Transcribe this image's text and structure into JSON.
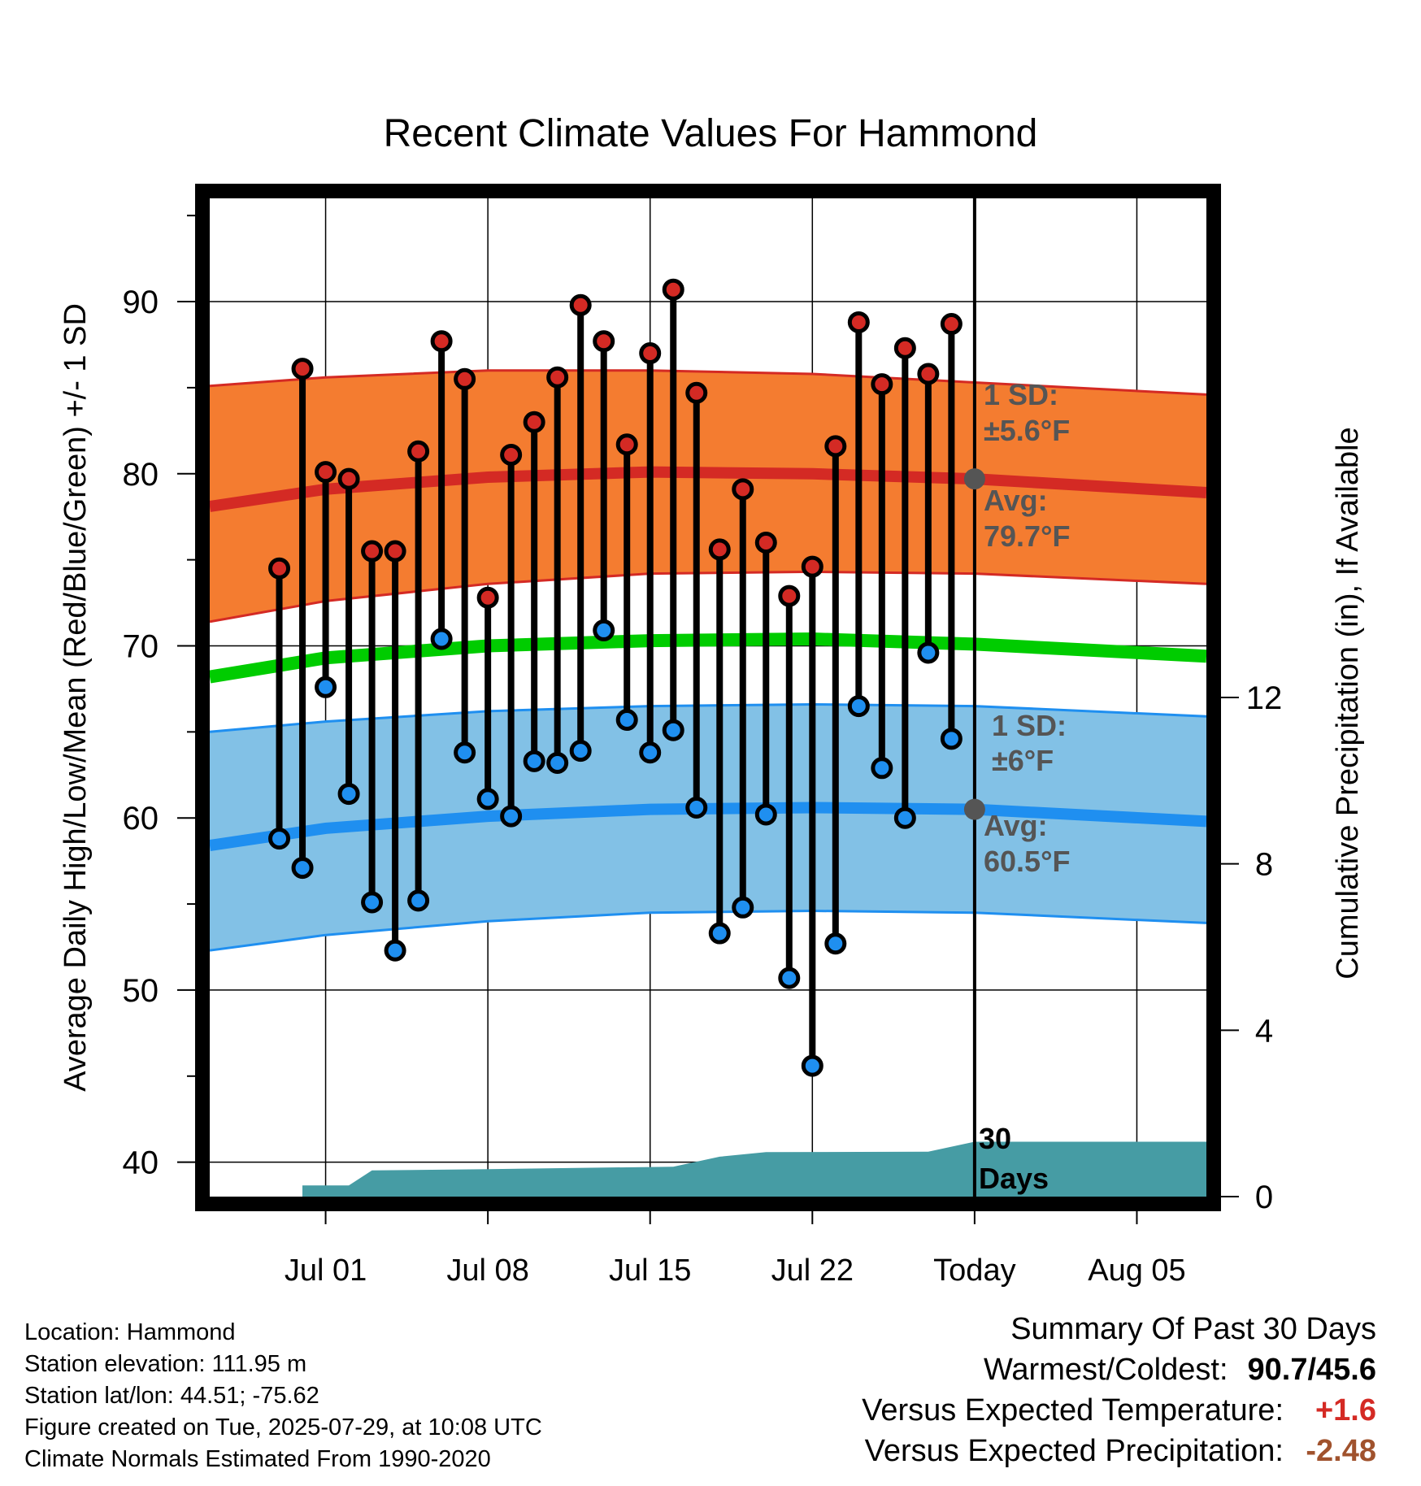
{
  "title": "Recent Climate Values For Hammond",
  "chart_data": {
    "type": "line",
    "title": "Recent Climate Values For Hammond",
    "xlabel": "Day",
    "ylabel": "Average Daily High/Low/Mean (Red/Blue/Green) +/- 1 SD",
    "y2label": "Cumulative Precipitation (in), If Available",
    "ylim": [
      38,
      96
    ],
    "y2lim": [
      0,
      24
    ],
    "yticks": [
      40,
      50,
      60,
      70,
      80,
      90
    ],
    "y2ticks": [
      0,
      4,
      8,
      12
    ],
    "xlim": [
      "2025-06-26",
      "2025-08-08"
    ],
    "xticks": [
      {
        "date": "2025-07-01",
        "label": "Jul 01"
      },
      {
        "date": "2025-07-08",
        "label": "Jul 08"
      },
      {
        "date": "2025-07-15",
        "label": "Jul 15"
      },
      {
        "date": "2025-07-22",
        "label": "Jul 22"
      },
      {
        "date": "2025-07-29",
        "label": "Today"
      },
      {
        "date": "2025-08-05",
        "label": "Aug 05"
      }
    ],
    "grid": true,
    "today": "2025-07-29",
    "daily_dates": [
      "2025-06-29",
      "2025-06-30",
      "2025-07-01",
      "2025-07-02",
      "2025-07-03",
      "2025-07-04",
      "2025-07-05",
      "2025-07-06",
      "2025-07-07",
      "2025-07-08",
      "2025-07-09",
      "2025-07-10",
      "2025-07-11",
      "2025-07-12",
      "2025-07-13",
      "2025-07-14",
      "2025-07-15",
      "2025-07-16",
      "2025-07-17",
      "2025-07-18",
      "2025-07-19",
      "2025-07-20",
      "2025-07-21",
      "2025-07-22",
      "2025-07-23",
      "2025-07-24",
      "2025-07-25",
      "2025-07-26",
      "2025-07-27",
      "2025-07-28"
    ],
    "daily_high": [
      74.5,
      86.1,
      80.1,
      79.7,
      75.5,
      75.5,
      81.3,
      87.7,
      85.5,
      72.8,
      81.1,
      83.0,
      85.6,
      89.8,
      87.7,
      81.7,
      87.0,
      90.7,
      84.7,
      75.6,
      79.1,
      76.0,
      72.9,
      74.6,
      81.6,
      88.8,
      85.2,
      87.3,
      85.8,
      88.7
    ],
    "daily_low": [
      58.8,
      57.1,
      67.6,
      61.4,
      55.1,
      52.3,
      55.2,
      70.4,
      63.8,
      61.1,
      60.1,
      63.3,
      63.2,
      63.9,
      70.9,
      65.7,
      63.8,
      65.1,
      60.6,
      53.3,
      54.8,
      60.2,
      50.7,
      45.6,
      52.7,
      66.5,
      62.9,
      60.0,
      69.6,
      64.6
    ],
    "normals_dates": [
      "2025-06-26",
      "2025-07-01",
      "2025-07-08",
      "2025-07-15",
      "2025-07-22",
      "2025-07-29",
      "2025-08-08"
    ],
    "normal_high_avg": [
      78.1,
      79.1,
      79.8,
      80.1,
      80.0,
      79.7,
      78.9
    ],
    "normal_high_upper": [
      85.1,
      85.6,
      86.0,
      86.0,
      85.8,
      85.3,
      84.6
    ],
    "normal_high_lower": [
      71.4,
      72.6,
      73.6,
      74.2,
      74.3,
      74.2,
      73.6
    ],
    "normal_mean": [
      68.2,
      69.3,
      70.0,
      70.3,
      70.4,
      70.1,
      69.4
    ],
    "normal_low_avg": [
      58.4,
      59.4,
      60.1,
      60.5,
      60.6,
      60.5,
      59.8
    ],
    "normal_low_upper": [
      65.0,
      65.6,
      66.2,
      66.5,
      66.6,
      66.5,
      65.9
    ],
    "normal_low_lower": [
      52.3,
      53.2,
      54.0,
      54.5,
      54.6,
      54.5,
      53.9
    ],
    "precip_dates": [
      "2025-06-29",
      "2025-06-30",
      "2025-06-30",
      "2025-07-02",
      "2025-07-03",
      "2025-07-08",
      "2025-07-16",
      "2025-07-18",
      "2025-07-20",
      "2025-07-27",
      "2025-07-29",
      "2025-08-08"
    ],
    "precip_cum": [
      0.0,
      0.0,
      0.27,
      0.27,
      0.63,
      0.66,
      0.72,
      0.96,
      1.07,
      1.08,
      1.32,
      1.32
    ],
    "annotations": {
      "high_sd_label": "1 SD:",
      "high_sd_value": "±5.6°F",
      "high_avg_label": "Avg:",
      "high_avg_value": "79.7°F",
      "low_sd_label": "1 SD:",
      "low_sd_value": "±6°F",
      "low_avg_label": "Avg:",
      "low_avg_value": "60.5°F",
      "precip_label_1": "30",
      "precip_label_2": "Days"
    },
    "colors": {
      "high_band": "#f47c30",
      "high_line": "#d42a24",
      "mean_line": "#00cc00",
      "low_band": "#82c1e6",
      "low_line": "#1f8ff0",
      "precip": "#469ca4",
      "high_marker": "#d42a24",
      "low_marker": "#1f8ff0",
      "annotation": "#555555"
    }
  },
  "footer": {
    "location": "Location: Hammond",
    "elevation": "Station elevation: 111.95 m",
    "latlon": "Station lat/lon: 44.51; -75.62",
    "created": "Figure created on Tue, 2025-07-29, at 10:08 UTC",
    "normals": "Climate Normals Estimated From 1990-2020"
  },
  "summary": {
    "title": "Summary Of Past 30 Days",
    "warm_cold_label": "Warmest/Coldest:",
    "warm_cold_value": "90.7/45.6",
    "temp_label": "Versus Expected Temperature:",
    "temp_value": "+1.6",
    "temp_color": "#d42a24",
    "precip_label": "Versus Expected Precipitation:",
    "precip_value": "-2.48",
    "precip_color": "#a0522d"
  }
}
